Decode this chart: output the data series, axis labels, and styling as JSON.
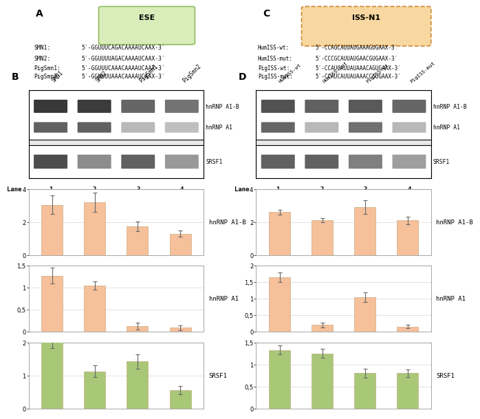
{
  "panel_A_label": "A",
  "panel_B_label": "B",
  "panel_C_label": "C",
  "panel_D_label": "D",
  "ese_label": "ESE",
  "iss_label": "ISS-N1",
  "seq_A_names": [
    "SMN1:",
    "SMN2:",
    "PigSmn1:",
    "PigSmn2:"
  ],
  "seq_A_seqs": [
    "5′-GGUUUCAGACAAAAUCAAX-3′",
    "5′-GGUUUUAGACAAAAUCAAX-3′",
    "5′-GGUUUCAAACAAAAUCAAX-3′",
    "5′-GGUUUUAAACAAAAUCAAX-3′"
  ],
  "seq_C_names": [
    "HumISS-wt:",
    "HumISS-mut:",
    "PigISS-wt:",
    "PigISS-mut:"
  ],
  "seq_C_seqs": [
    "5′-CCAGCAUUAUGAAAGUGAAX-3′",
    "5′-CCCGCAUUAUGAACGUGAAX-3′",
    "5′-CCAUCAUUAUAAACAGUGAAX-3′",
    "5′-CCAUCAUUAUAAACCGUGAAX-3′"
  ],
  "lane_labels": [
    "1",
    "2",
    "3",
    "4"
  ],
  "B_hnRNP_A1B_values": [
    3.05,
    3.2,
    1.75,
    1.3
  ],
  "B_hnRNP_A1B_errors": [
    0.55,
    0.6,
    0.3,
    0.18
  ],
  "B_hnRNP_A1_values": [
    1.27,
    1.05,
    0.13,
    0.09
  ],
  "B_hnRNP_A1_errors": [
    0.18,
    0.09,
    0.08,
    0.05
  ],
  "B_SRSF1_values": [
    2.05,
    1.12,
    1.42,
    0.55
  ],
  "B_SRSF1_errors": [
    0.22,
    0.18,
    0.22,
    0.12
  ],
  "D_hnRNP_A1B_values": [
    2.6,
    2.1,
    2.9,
    2.1
  ],
  "D_hnRNP_A1B_errors": [
    0.15,
    0.12,
    0.42,
    0.22
  ],
  "D_hnRNP_A1_values": [
    1.65,
    0.2,
    1.05,
    0.15
  ],
  "D_hnRNP_A1_errors": [
    0.15,
    0.07,
    0.15,
    0.05
  ],
  "D_SRSF1_values": [
    1.33,
    1.25,
    0.8,
    0.8
  ],
  "D_SRSF1_errors": [
    0.1,
    0.1,
    0.1,
    0.08
  ],
  "B_hnRNP_A1B_ylim": [
    0,
    4
  ],
  "B_hnRNP_A1_ylim": [
    0,
    1.5
  ],
  "B_SRSF1_ylim": [
    0,
    2
  ],
  "D_hnRNP_A1B_ylim": [
    0,
    4
  ],
  "D_hnRNP_A1_ylim": [
    0,
    2
  ],
  "D_SRSF1_ylim": [
    0,
    1.5
  ],
  "B_hnRNP_A1B_yticks": [
    0,
    2,
    4
  ],
  "B_hnRNP_A1_yticks": [
    0,
    0.5,
    1.0,
    1.5
  ],
  "B_SRSF1_yticks": [
    0,
    1,
    2
  ],
  "D_hnRNP_A1B_yticks": [
    0,
    2,
    4
  ],
  "D_hnRNP_A1_yticks": [
    0,
    0.5,
    1.0,
    1.5,
    2.0
  ],
  "D_SRSF1_yticks": [
    0,
    0.5,
    1.0,
    1.5
  ],
  "orange_bar_color": "#F5C09A",
  "green_bar_color": "#A8C878",
  "bar_edge_color": "#C0A070",
  "error_color": "#666666",
  "ese_box_color": "#D8EDBA",
  "ese_edge_color": "#90BB60",
  "iss_box_color": "#F8D8A0",
  "iss_edge_color": "#CC8833",
  "bg_color": "#FFFFFF",
  "grid_color": "#DDDDDD",
  "blot_bg": "#E8E8E8",
  "label_B_hnRNP_A1B": "hnRNP A1-B",
  "label_B_hnRNP_A1": "hnRNP A1",
  "label_B_SRSF1": "SRSF1",
  "label_D_hnRNP_A1B": "hnRNP A1-B",
  "label_D_hnRNP_A1": "hnRNP A1",
  "label_D_SRSF1": "SRSF1",
  "blot_B_x_labels": [
    "SMN1",
    "SMN2",
    "PigSmn1",
    "PigSmn2"
  ],
  "blot_D_x_labels": [
    "HumISS-wt",
    "HumISS-mut",
    "PigISS-wt",
    "PigISS-mut"
  ],
  "font_mono": "DejaVu Sans Mono",
  "font_size_seq": 5.8,
  "font_size_blot_label": 5.8,
  "font_size_bar_label": 6.5,
  "font_size_ytick": 6.0,
  "font_size_panel": 10,
  "font_size_lane": 6.5,
  "font_size_col": 5.8
}
